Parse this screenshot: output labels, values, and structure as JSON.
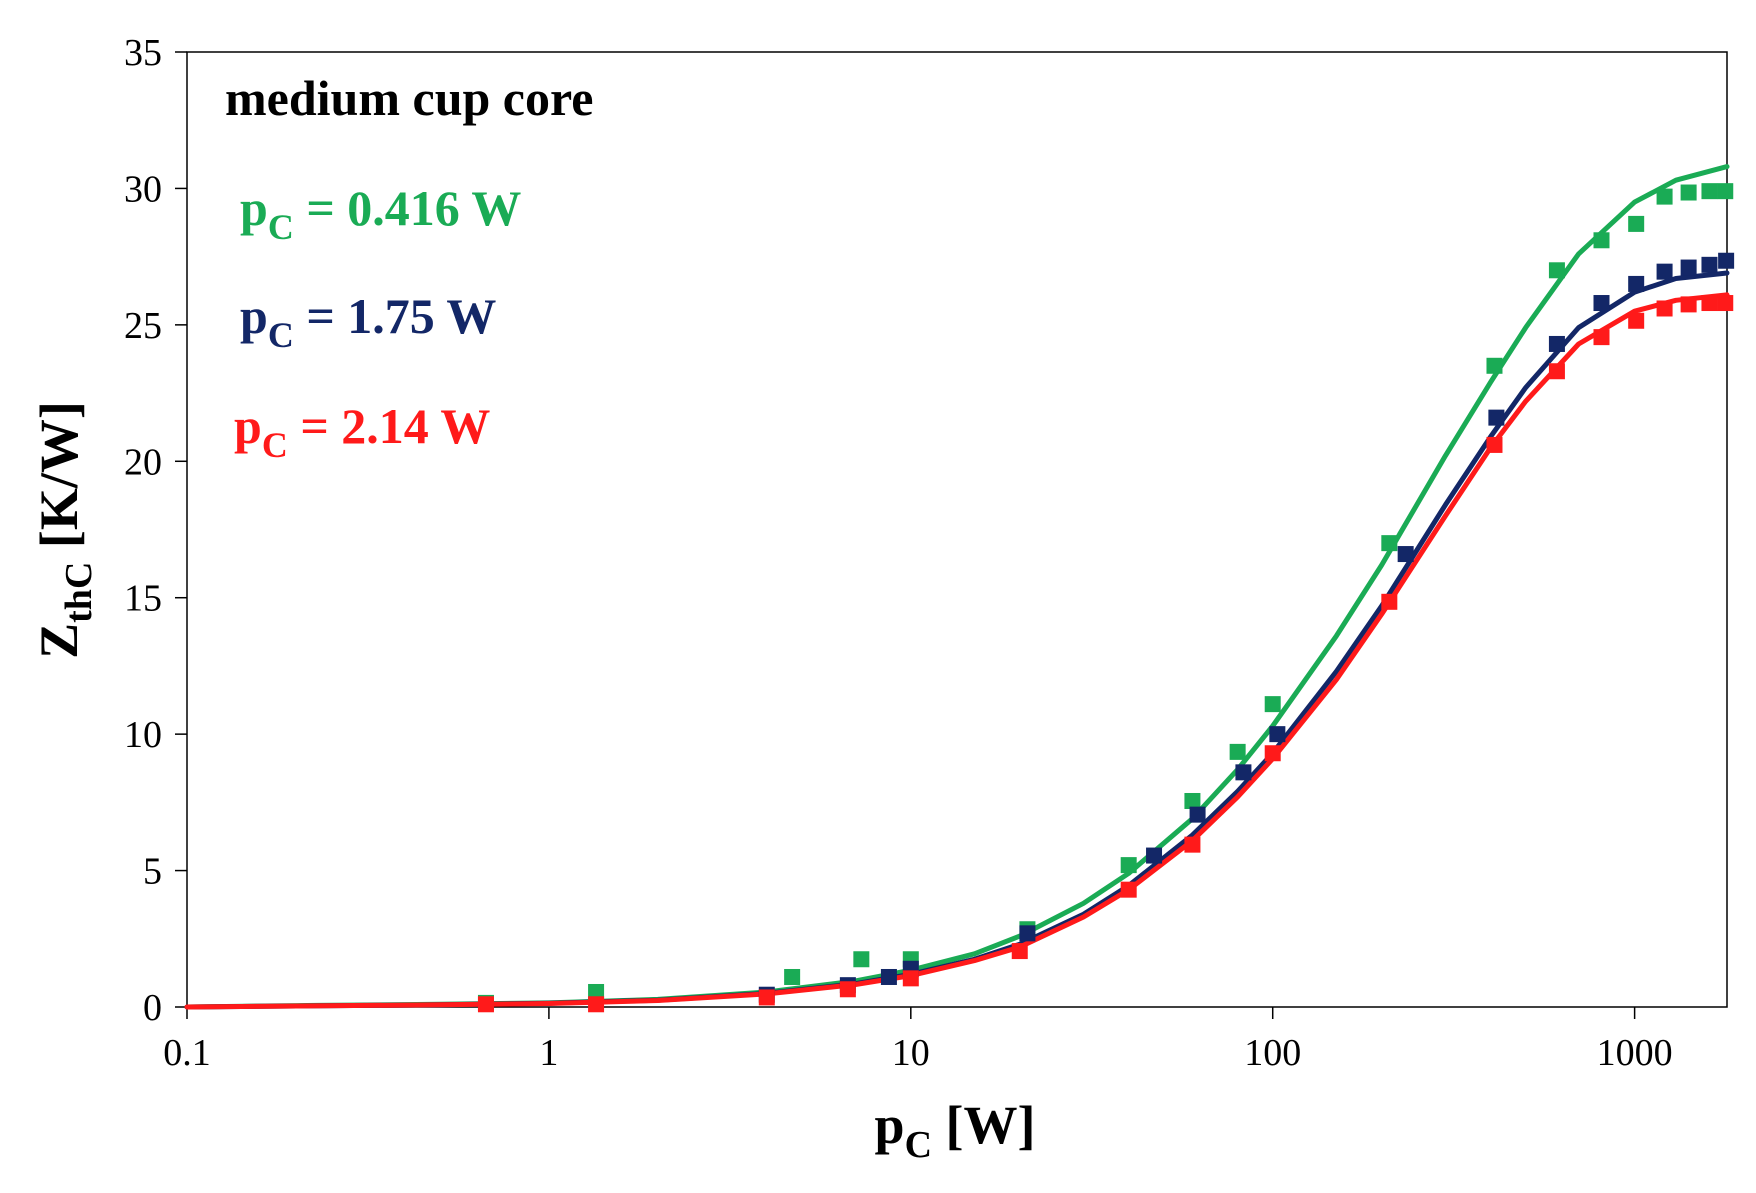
{
  "chart_data": {
    "type": "scatter",
    "x_scale": "log",
    "xlim": [
      0.1,
      1800
    ],
    "ylim": [
      0,
      35
    ],
    "x_ticks": [
      0.1,
      1,
      10,
      100,
      1000
    ],
    "x_tick_labels": [
      "0.1",
      "1",
      "10",
      "100",
      "1000"
    ],
    "y_ticks": [
      0,
      5,
      10,
      15,
      20,
      25,
      30,
      35
    ],
    "y_tick_labels": [
      "0",
      "5",
      "10",
      "15",
      "20",
      "25",
      "30",
      "35"
    ],
    "xlabel": {
      "main": "p",
      "sub": "C",
      "tail": " [W]"
    },
    "ylabel": {
      "main": "Z",
      "sub": "thC",
      "tail": " [K/W]"
    },
    "annotation": "medium cup core",
    "grid": false,
    "legend_position": "top-left",
    "series": [
      {
        "name": "pC = 0.416 W",
        "label_main": "p",
        "label_sub": "C",
        "label_tail": " = 0.416 W",
        "color": "#1aab55",
        "points": [
          [
            0.67,
            0.15
          ],
          [
            1.35,
            0.55
          ],
          [
            4.7,
            1.1
          ],
          [
            7.3,
            1.75
          ],
          [
            10,
            1.75
          ],
          [
            21,
            2.85
          ],
          [
            40,
            5.2
          ],
          [
            60,
            7.55
          ],
          [
            80,
            9.35
          ],
          [
            100,
            11.1
          ],
          [
            210,
            17.0
          ],
          [
            410,
            23.5
          ],
          [
            610,
            27.0
          ],
          [
            810,
            28.1
          ],
          [
            1010,
            28.7
          ],
          [
            1210,
            29.7
          ],
          [
            1410,
            29.85
          ],
          [
            1610,
            29.9
          ],
          [
            1780,
            29.9
          ]
        ],
        "fit": [
          [
            0.1,
            0.0
          ],
          [
            0.23,
            0.06
          ],
          [
            0.5,
            0.1
          ],
          [
            1,
            0.15
          ],
          [
            2,
            0.28
          ],
          [
            4,
            0.55
          ],
          [
            7,
            0.95
          ],
          [
            10,
            1.35
          ],
          [
            15,
            1.95
          ],
          [
            20,
            2.6
          ],
          [
            30,
            3.8
          ],
          [
            40,
            4.9
          ],
          [
            60,
            6.9
          ],
          [
            80,
            8.7
          ],
          [
            100,
            10.3
          ],
          [
            150,
            13.6
          ],
          [
            200,
            16.2
          ],
          [
            300,
            20.2
          ],
          [
            400,
            22.9
          ],
          [
            500,
            24.9
          ],
          [
            700,
            27.6
          ],
          [
            1000,
            29.5
          ],
          [
            1300,
            30.3
          ],
          [
            1800,
            30.8
          ]
        ]
      },
      {
        "name": "pC = 1.75 W",
        "label_main": "p",
        "label_sub": "C",
        "label_tail": " = 1.75 W",
        "color": "#132767",
        "points": [
          [
            4.0,
            0.45
          ],
          [
            6.7,
            0.8
          ],
          [
            8.7,
            1.1
          ],
          [
            10,
            1.4
          ],
          [
            21,
            2.7
          ],
          [
            47,
            5.55
          ],
          [
            62,
            7.05
          ],
          [
            83,
            8.6
          ],
          [
            103,
            10.0
          ],
          [
            233,
            16.6
          ],
          [
            415,
            21.6
          ],
          [
            610,
            24.3
          ],
          [
            810,
            25.8
          ],
          [
            1010,
            26.5
          ],
          [
            1210,
            26.95
          ],
          [
            1410,
            27.1
          ],
          [
            1610,
            27.2
          ],
          [
            1790,
            27.35
          ]
        ],
        "fit": [
          [
            0.1,
            0.0
          ],
          [
            0.5,
            0.08
          ],
          [
            1,
            0.14
          ],
          [
            2,
            0.25
          ],
          [
            4,
            0.5
          ],
          [
            7,
            0.85
          ],
          [
            10,
            1.2
          ],
          [
            15,
            1.75
          ],
          [
            20,
            2.3
          ],
          [
            30,
            3.4
          ],
          [
            40,
            4.45
          ],
          [
            60,
            6.3
          ],
          [
            80,
            7.9
          ],
          [
            100,
            9.3
          ],
          [
            150,
            12.3
          ],
          [
            200,
            14.7
          ],
          [
            300,
            18.4
          ],
          [
            400,
            20.9
          ],
          [
            500,
            22.7
          ],
          [
            700,
            24.9
          ],
          [
            1000,
            26.2
          ],
          [
            1300,
            26.7
          ],
          [
            1800,
            26.9
          ]
        ]
      },
      {
        "name": "pC = 2.14 W",
        "label_main": "p",
        "label_sub": "C",
        "label_tail": " = 2.14 W",
        "color": "#ff1a1a",
        "points": [
          [
            0.67,
            0.1
          ],
          [
            1.35,
            0.1
          ],
          [
            4.0,
            0.35
          ],
          [
            6.7,
            0.65
          ],
          [
            10,
            1.05
          ],
          [
            20,
            2.05
          ],
          [
            40,
            4.3
          ],
          [
            60,
            5.95
          ],
          [
            100,
            9.3
          ],
          [
            210,
            14.85
          ],
          [
            410,
            20.6
          ],
          [
            610,
            23.3
          ],
          [
            810,
            24.55
          ],
          [
            1010,
            25.15
          ],
          [
            1210,
            25.6
          ],
          [
            1410,
            25.75
          ],
          [
            1610,
            25.8
          ],
          [
            1780,
            25.8
          ]
        ],
        "fit": [
          [
            0.1,
            0.0
          ],
          [
            0.5,
            0.08
          ],
          [
            1,
            0.13
          ],
          [
            2,
            0.24
          ],
          [
            4,
            0.48
          ],
          [
            7,
            0.82
          ],
          [
            10,
            1.15
          ],
          [
            15,
            1.7
          ],
          [
            20,
            2.2
          ],
          [
            30,
            3.3
          ],
          [
            40,
            4.3
          ],
          [
            60,
            6.1
          ],
          [
            80,
            7.7
          ],
          [
            100,
            9.1
          ],
          [
            150,
            12.0
          ],
          [
            200,
            14.4
          ],
          [
            300,
            18.0
          ],
          [
            400,
            20.5
          ],
          [
            500,
            22.2
          ],
          [
            700,
            24.3
          ],
          [
            1000,
            25.5
          ],
          [
            1300,
            25.9
          ],
          [
            1800,
            26.1
          ]
        ]
      }
    ]
  }
}
